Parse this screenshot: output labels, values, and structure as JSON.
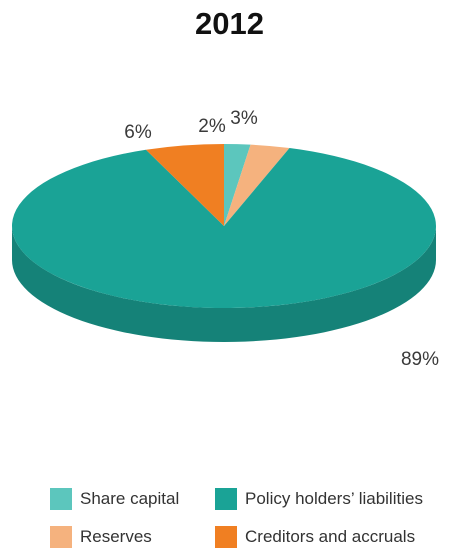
{
  "chart_data": {
    "type": "pie",
    "title": "2012",
    "slices": [
      {
        "label": "Share capital",
        "value": 2,
        "display": "2%",
        "color": "#5cc6bd"
      },
      {
        "label": "Reserves",
        "value": 3,
        "display": "3%",
        "color": "#f5b27e"
      },
      {
        "label": "Policy holders’ liabilities",
        "value": 89,
        "display": "89%",
        "color": "#1aa396"
      },
      {
        "label": "Creditors and accruals",
        "value": 6,
        "display": "6%",
        "color": "#f07f22"
      }
    ],
    "legend_position": "bottom",
    "style": "3d"
  }
}
